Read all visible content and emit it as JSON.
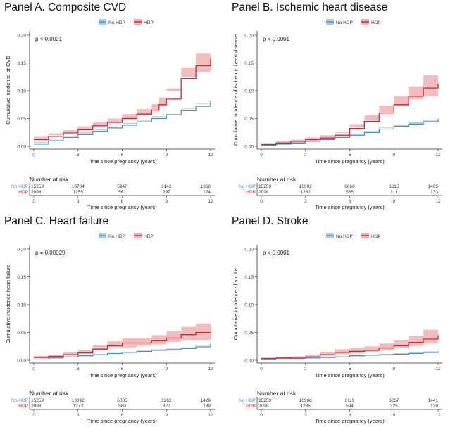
{
  "colors": {
    "no_hdp": "#4a90c8",
    "no_hdp_fill": "#a9cde9",
    "hdp": "#d3282f",
    "hdp_fill": "#f2b1b2"
  },
  "legend_labels": [
    "No HDP",
    "HDP"
  ],
  "risk_table_title": "Number at risk",
  "chart_data": [
    {
      "type": "line",
      "title": "Panel A. Composite CVD",
      "xlabel": "Time since pregnancy (years)",
      "ylabel": "Cumulative incidence of CVD",
      "pvalue": "p < 0.0001",
      "xlim": [
        0,
        12
      ],
      "ylim": [
        0,
        0.2
      ],
      "xticks": [
        0,
        3,
        6,
        9,
        12
      ],
      "yticks": [
        "0.00",
        "0.05",
        "0.10",
        "0.15",
        "0.20"
      ],
      "legend": "top-center",
      "series": [
        {
          "name": "No HDP",
          "x": [
            0,
            1,
            2,
            3,
            4,
            5,
            6,
            7,
            8,
            9,
            10,
            11,
            12
          ],
          "y": [
            0.004,
            0.01,
            0.016,
            0.021,
            0.027,
            0.033,
            0.038,
            0.044,
            0.05,
            0.057,
            0.064,
            0.072,
            0.082
          ],
          "lower": [
            0.002,
            0.008,
            0.014,
            0.019,
            0.025,
            0.031,
            0.036,
            0.042,
            0.047,
            0.054,
            0.06,
            0.067,
            0.076
          ],
          "upper": [
            0.006,
            0.012,
            0.018,
            0.023,
            0.029,
            0.035,
            0.04,
            0.046,
            0.053,
            0.06,
            0.068,
            0.077,
            0.088
          ]
        },
        {
          "name": "HDP",
          "x": [
            0,
            1,
            2,
            3,
            4,
            5,
            6,
            7,
            8,
            8.5,
            9,
            10,
            11,
            12
          ],
          "y": [
            0.012,
            0.018,
            0.024,
            0.03,
            0.037,
            0.043,
            0.05,
            0.058,
            0.065,
            0.075,
            0.085,
            0.122,
            0.145,
            0.158
          ],
          "lower": [
            0.008,
            0.014,
            0.02,
            0.025,
            0.031,
            0.037,
            0.043,
            0.05,
            0.056,
            0.064,
            0.072,
            0.104,
            0.124,
            0.134
          ],
          "upper": [
            0.017,
            0.023,
            0.029,
            0.036,
            0.043,
            0.05,
            0.058,
            0.067,
            0.076,
            0.088,
            0.1,
            0.142,
            0.167,
            0.183
          ]
        }
      ],
      "risk_table": {
        "No HDP": [
          "15259",
          "10784",
          "5947",
          "3142",
          "1368"
        ],
        "HDP": [
          "2098",
          "1255",
          "561",
          "297",
          "124"
        ]
      }
    },
    {
      "type": "line",
      "title": "Panel B. Ischemic heart disease",
      "xlabel": "Time since pregnancy (years)",
      "ylabel": "Cumulative incidence of ischemic heart disease",
      "pvalue": "p < 0.0001",
      "xlim": [
        0,
        12
      ],
      "ylim": [
        0,
        0.2
      ],
      "xticks": [
        0,
        3,
        6,
        9,
        12
      ],
      "yticks": [
        "0.00",
        "0.05",
        "0.10",
        "0.15",
        "0.20"
      ],
      "legend": "top-center",
      "series": [
        {
          "name": "No HDP",
          "x": [
            0,
            1,
            2,
            3,
            4,
            5,
            6,
            7,
            8,
            9,
            10,
            11,
            12
          ],
          "y": [
            0.002,
            0.004,
            0.006,
            0.009,
            0.012,
            0.016,
            0.02,
            0.025,
            0.031,
            0.036,
            0.04,
            0.044,
            0.05
          ],
          "lower": [
            0.001,
            0.003,
            0.005,
            0.008,
            0.011,
            0.014,
            0.018,
            0.023,
            0.028,
            0.033,
            0.036,
            0.04,
            0.045
          ],
          "upper": [
            0.003,
            0.005,
            0.007,
            0.01,
            0.013,
            0.018,
            0.022,
            0.027,
            0.034,
            0.039,
            0.044,
            0.048,
            0.055
          ]
        },
        {
          "name": "HDP",
          "x": [
            0,
            1,
            2,
            3,
            4,
            5,
            6,
            7,
            8,
            9,
            10,
            11,
            12
          ],
          "y": [
            0.003,
            0.006,
            0.009,
            0.012,
            0.015,
            0.02,
            0.032,
            0.045,
            0.06,
            0.075,
            0.09,
            0.105,
            0.113
          ],
          "lower": [
            0.001,
            0.003,
            0.006,
            0.008,
            0.011,
            0.015,
            0.024,
            0.035,
            0.048,
            0.061,
            0.073,
            0.085,
            0.09
          ],
          "upper": [
            0.006,
            0.009,
            0.012,
            0.016,
            0.02,
            0.026,
            0.04,
            0.056,
            0.073,
            0.09,
            0.108,
            0.128,
            0.14
          ]
        }
      ],
      "risk_table": {
        "No HDP": [
          "15259",
          "10902",
          "6060",
          "3215",
          "1405"
        ],
        "HDP": [
          "2098",
          "1282",
          "585",
          "311",
          "133"
        ]
      }
    },
    {
      "type": "line",
      "title": "Panel C. Heart failure",
      "xlabel": "Time since pregnancy (years)",
      "ylabel": "Cumulative incidence heart failure",
      "pvalue": "p = 0.00029",
      "xlim": [
        0,
        12
      ],
      "ylim": [
        0,
        0.2
      ],
      "xticks": [
        0,
        3,
        6,
        9,
        12
      ],
      "yticks": [
        "0.00",
        "0.05",
        "0.10",
        "0.15",
        "0.20"
      ],
      "legend": "top-center",
      "series": [
        {
          "name": "No HDP",
          "x": [
            0,
            1,
            2,
            3,
            4,
            5,
            6,
            7,
            8,
            9,
            10,
            11,
            12
          ],
          "y": [
            0.002,
            0.004,
            0.006,
            0.008,
            0.01,
            0.012,
            0.014,
            0.016,
            0.018,
            0.019,
            0.021,
            0.024,
            0.03
          ],
          "lower": [
            0.001,
            0.003,
            0.005,
            0.007,
            0.009,
            0.011,
            0.013,
            0.015,
            0.016,
            0.017,
            0.019,
            0.021,
            0.026
          ],
          "upper": [
            0.003,
            0.005,
            0.007,
            0.009,
            0.011,
            0.013,
            0.015,
            0.017,
            0.02,
            0.021,
            0.023,
            0.027,
            0.034
          ]
        },
        {
          "name": "HDP",
          "x": [
            0,
            1,
            2,
            3,
            4,
            5,
            6,
            7,
            8,
            9,
            10,
            11,
            12
          ],
          "y": [
            0.005,
            0.007,
            0.01,
            0.013,
            0.02,
            0.026,
            0.031,
            0.031,
            0.035,
            0.04,
            0.046,
            0.05,
            0.05
          ],
          "lower": [
            0.003,
            0.004,
            0.007,
            0.009,
            0.014,
            0.019,
            0.023,
            0.023,
            0.026,
            0.029,
            0.033,
            0.036,
            0.036
          ],
          "upper": [
            0.008,
            0.01,
            0.014,
            0.018,
            0.027,
            0.034,
            0.04,
            0.04,
            0.045,
            0.052,
            0.06,
            0.066,
            0.066
          ]
        }
      ],
      "risk_table": {
        "No HDP": [
          "15259",
          "10892",
          "6085",
          "3262",
          "1429"
        ],
        "HDP": [
          "2098",
          "1273",
          "580",
          "322",
          "139"
        ]
      }
    },
    {
      "type": "line",
      "title": "Panel D. Stroke",
      "xlabel": "Time since pregnancy (years)",
      "ylabel": "Cumulative incidence of stroke",
      "pvalue": "p < 0.0001",
      "xlim": [
        0,
        12
      ],
      "ylim": [
        0,
        0.2
      ],
      "xticks": [
        0,
        3,
        6,
        9,
        12
      ],
      "yticks": [
        "0.00",
        "0.05",
        "0.10",
        "0.15",
        "0.20"
      ],
      "legend": "top-center",
      "series": [
        {
          "name": "No HDP",
          "x": [
            0,
            1,
            2,
            3,
            4,
            5,
            6,
            7,
            8,
            9,
            10,
            11,
            12
          ],
          "y": [
            0.001,
            0.002,
            0.003,
            0.004,
            0.005,
            0.006,
            0.008,
            0.009,
            0.01,
            0.011,
            0.012,
            0.014,
            0.016
          ],
          "lower": [
            0.0,
            0.001,
            0.002,
            0.003,
            0.004,
            0.005,
            0.007,
            0.008,
            0.009,
            0.01,
            0.011,
            0.012,
            0.013
          ],
          "upper": [
            0.002,
            0.003,
            0.004,
            0.005,
            0.006,
            0.007,
            0.009,
            0.01,
            0.011,
            0.012,
            0.014,
            0.016,
            0.019
          ]
        },
        {
          "name": "HDP",
          "x": [
            0,
            1,
            2,
            3,
            4,
            5,
            6,
            7,
            8,
            9,
            10,
            11,
            12
          ],
          "y": [
            0.003,
            0.004,
            0.005,
            0.006,
            0.01,
            0.014,
            0.016,
            0.018,
            0.022,
            0.026,
            0.032,
            0.038,
            0.045
          ],
          "lower": [
            0.001,
            0.002,
            0.003,
            0.004,
            0.006,
            0.009,
            0.011,
            0.012,
            0.015,
            0.018,
            0.022,
            0.026,
            0.03
          ],
          "upper": [
            0.005,
            0.006,
            0.007,
            0.009,
            0.015,
            0.02,
            0.022,
            0.025,
            0.03,
            0.036,
            0.044,
            0.055,
            0.066
          ]
        }
      ],
      "risk_table": {
        "No HDP": [
          "15259",
          "10968",
          "6119",
          "3267",
          "1441"
        ],
        "HDP": [
          "2098",
          "1285",
          "594",
          "325",
          "139"
        ]
      }
    }
  ]
}
